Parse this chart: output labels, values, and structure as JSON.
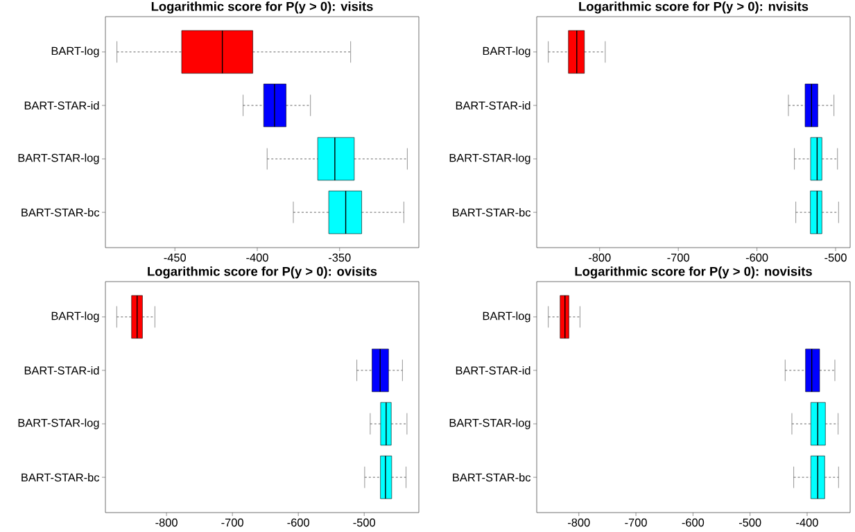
{
  "chart_data": [
    {
      "type": "box",
      "title": "Logarithmic score for P(y > 0): visits",
      "orientation": "horizontal",
      "categories": [
        "BART-log",
        "BART-STAR-id",
        "BART-STAR-log",
        "BART-STAR-bc"
      ],
      "colors": [
        "#ff0000",
        "#0000ff",
        "#00ffff",
        "#00ffff"
      ],
      "boxes": [
        {
          "low": -485.2,
          "q1": -445.9,
          "median": -421.2,
          "q3": -402.7,
          "high": -343.3
        },
        {
          "low": -408.6,
          "q1": -396.1,
          "median": -389.5,
          "q3": -382.5,
          "high": -367.7
        },
        {
          "low": -394.0,
          "q1": -363.3,
          "median": -352.9,
          "q3": -341.1,
          "high": -308.9
        },
        {
          "low": -378.1,
          "q1": -356.6,
          "median": -346.3,
          "q3": -336.6,
          "high": -311.0
        }
      ],
      "xlim": [
        -492.2,
        -301.9
      ],
      "xticks": [
        -450,
        -400,
        -350
      ]
    },
    {
      "type": "box",
      "title": "Logarithmic score for P(y > 0): nvisits",
      "orientation": "horizontal",
      "categories": [
        "BART-log",
        "BART-STAR-id",
        "BART-STAR-log",
        "BART-STAR-bc"
      ],
      "colors": [
        "#ff0000",
        "#0000ff",
        "#00ffff",
        "#00ffff"
      ],
      "boxes": [
        {
          "low": -865.3,
          "q1": -839.7,
          "median": -829.1,
          "q3": -819.4,
          "high": -792.9
        },
        {
          "low": -560.0,
          "q1": -538.8,
          "median": -530.6,
          "q3": -522.6,
          "high": -502.1
        },
        {
          "low": -552.4,
          "q1": -531.8,
          "median": -523.5,
          "q3": -517.4,
          "high": -497.6
        },
        {
          "low": -550.6,
          "q1": -532.1,
          "median": -523.5,
          "q3": -517.4,
          "high": -496.2
        }
      ],
      "xlim": [
        -880,
        -481.5
      ],
      "xticks": [
        -800,
        -700,
        -600,
        -500
      ]
    },
    {
      "type": "box",
      "title": "Logarithmic score for P(y > 0): ovisits",
      "orientation": "horizontal",
      "categories": [
        "BART-log",
        "BART-STAR-id",
        "BART-STAR-log",
        "BART-STAR-bc"
      ],
      "colors": [
        "#ff0000",
        "#0000ff",
        "#00ffff",
        "#00ffff"
      ],
      "boxes": [
        {
          "low": -875.5,
          "q1": -853.0,
          "median": -844.6,
          "q3": -836.5,
          "high": -817.6
        },
        {
          "low": -511.2,
          "q1": -488.1,
          "median": -475.8,
          "q3": -463.1,
          "high": -442.0
        },
        {
          "low": -490.9,
          "q1": -475.1,
          "median": -466.7,
          "q3": -459.0,
          "high": -435.1
        },
        {
          "low": -499.3,
          "q1": -475.4,
          "median": -467.7,
          "q3": -458.3,
          "high": -436.5
        }
      ],
      "xlim": [
        -892.7,
        -417.1
      ],
      "xticks": [
        -800,
        -700,
        -600,
        -500
      ]
    },
    {
      "type": "box",
      "title": "Logarithmic score for P(y > 0): novisits",
      "orientation": "horizontal",
      "categories": [
        "BART-log",
        "BART-STAR-id",
        "BART-STAR-log",
        "BART-STAR-bc"
      ],
      "colors": [
        "#ff0000",
        "#0000ff",
        "#00ffff",
        "#00ffff"
      ],
      "boxes": [
        {
          "low": -853.5,
          "q1": -832.8,
          "median": -824.3,
          "q3": -817.4,
          "high": -798.0
        },
        {
          "low": -438.5,
          "q1": -402.8,
          "median": -391.9,
          "q3": -378.1,
          "high": -351.4
        },
        {
          "low": -426.7,
          "q1": -393.5,
          "median": -381.4,
          "q3": -368.0,
          "high": -345.7
        },
        {
          "low": -423.5,
          "q1": -393.5,
          "median": -381.4,
          "q3": -369.2,
          "high": -344.9
        }
      ],
      "xlim": [
        -873.8,
        -324.6
      ],
      "xticks": [
        -800,
        -700,
        -600,
        -500,
        -400
      ]
    }
  ]
}
